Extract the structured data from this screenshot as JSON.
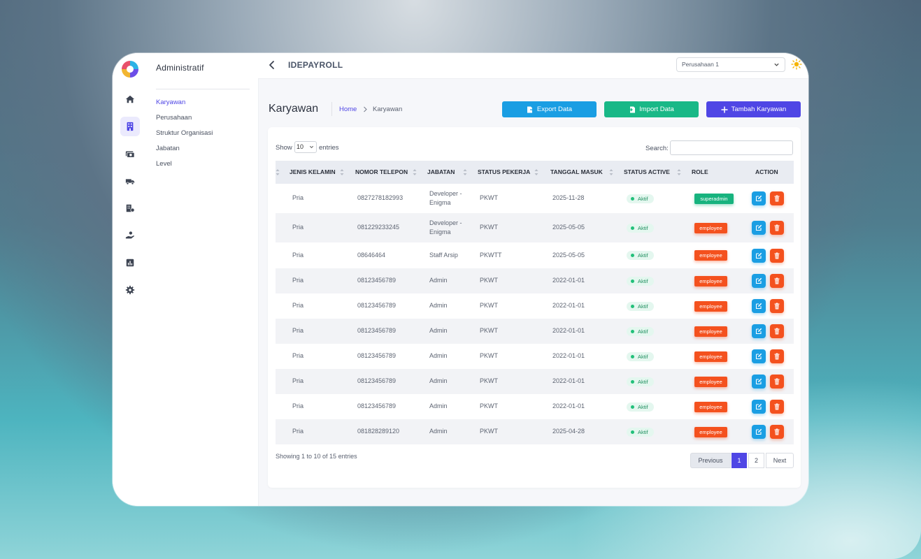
{
  "sidebar": {
    "title": "Administratif",
    "items": [
      {
        "label": "Karyawan",
        "active": true
      },
      {
        "label": "Perusahaan",
        "active": false
      },
      {
        "label": "Struktur Organisasi",
        "active": false
      },
      {
        "label": "Jabatan",
        "active": false
      },
      {
        "label": "Level",
        "active": false
      }
    ],
    "rail_icons": [
      "home-icon",
      "building-icon",
      "money-icon",
      "truck-icon",
      "office-icon",
      "hand-coin-icon",
      "chart-icon",
      "gear-icon"
    ]
  },
  "topbar": {
    "title": "IDEPAYROLL",
    "company_select": "Perusahaan 1"
  },
  "page": {
    "title": "Karyawan",
    "breadcrumb": {
      "home": "Home",
      "current": "Karyawan"
    },
    "buttons": {
      "export": "Export Data",
      "import": "Import Data",
      "add": "Tambah Karyawan"
    }
  },
  "table_controls": {
    "show_label": "Show",
    "show_value": "10",
    "entries_label": "entries",
    "search_label": "Search:"
  },
  "table": {
    "columns": [
      "JENIS KELAMIN",
      "NOMOR TELEPON",
      "JABATAN",
      "STATUS PEKERJA",
      "TANGGAL MASUK",
      "STATUS ACTIVE",
      "ROLE",
      "ACTION"
    ],
    "rows": [
      {
        "gender": "Pria",
        "phone": "0827278182993",
        "jabatan": "Developer - Enigma",
        "status": "PKWT",
        "tanggal": "2025-11-28",
        "active": "Aktif",
        "role": "superadmin"
      },
      {
        "gender": "Pria",
        "phone": "081229233245",
        "jabatan": "Developer - Enigma",
        "status": "PKWT",
        "tanggal": "2025-05-05",
        "active": "Aktif",
        "role": "employee"
      },
      {
        "gender": "Pria",
        "phone": "08646464",
        "jabatan": "Staff Arsip",
        "status": "PKWTT",
        "tanggal": "2025-05-05",
        "active": "Aktif",
        "role": "employee"
      },
      {
        "gender": "Pria",
        "phone": "08123456789",
        "jabatan": "Admin",
        "status": "PKWT",
        "tanggal": "2022-01-01",
        "active": "Aktif",
        "role": "employee"
      },
      {
        "gender": "Pria",
        "phone": "08123456789",
        "jabatan": "Admin",
        "status": "PKWT",
        "tanggal": "2022-01-01",
        "active": "Aktif",
        "role": "employee"
      },
      {
        "gender": "Pria",
        "phone": "08123456789",
        "jabatan": "Admin",
        "status": "PKWT",
        "tanggal": "2022-01-01",
        "active": "Aktif",
        "role": "employee"
      },
      {
        "gender": "Pria",
        "phone": "08123456789",
        "jabatan": "Admin",
        "status": "PKWT",
        "tanggal": "2022-01-01",
        "active": "Aktif",
        "role": "employee"
      },
      {
        "gender": "Pria",
        "phone": "08123456789",
        "jabatan": "Admin",
        "status": "PKWT",
        "tanggal": "2022-01-01",
        "active": "Aktif",
        "role": "employee"
      },
      {
        "gender": "Pria",
        "phone": "08123456789",
        "jabatan": "Admin",
        "status": "PKWT",
        "tanggal": "2022-01-01",
        "active": "Aktif",
        "role": "employee"
      },
      {
        "gender": "Pria",
        "phone": "081828289120",
        "jabatan": "Admin",
        "status": "PKWT",
        "tanggal": "2025-04-28",
        "active": "Aktif",
        "role": "employee"
      }
    ]
  },
  "footer": {
    "info": "Showing 1 to 10 of 15 entries",
    "pagination": {
      "previous": "Previous",
      "pages": [
        "1",
        "2"
      ],
      "next": "Next"
    }
  },
  "colors": {
    "primary": "#4f46e5",
    "export": "#1a9ee3",
    "import": "#19b887",
    "superadmin": "#17b37e",
    "employee": "#f4511e"
  }
}
